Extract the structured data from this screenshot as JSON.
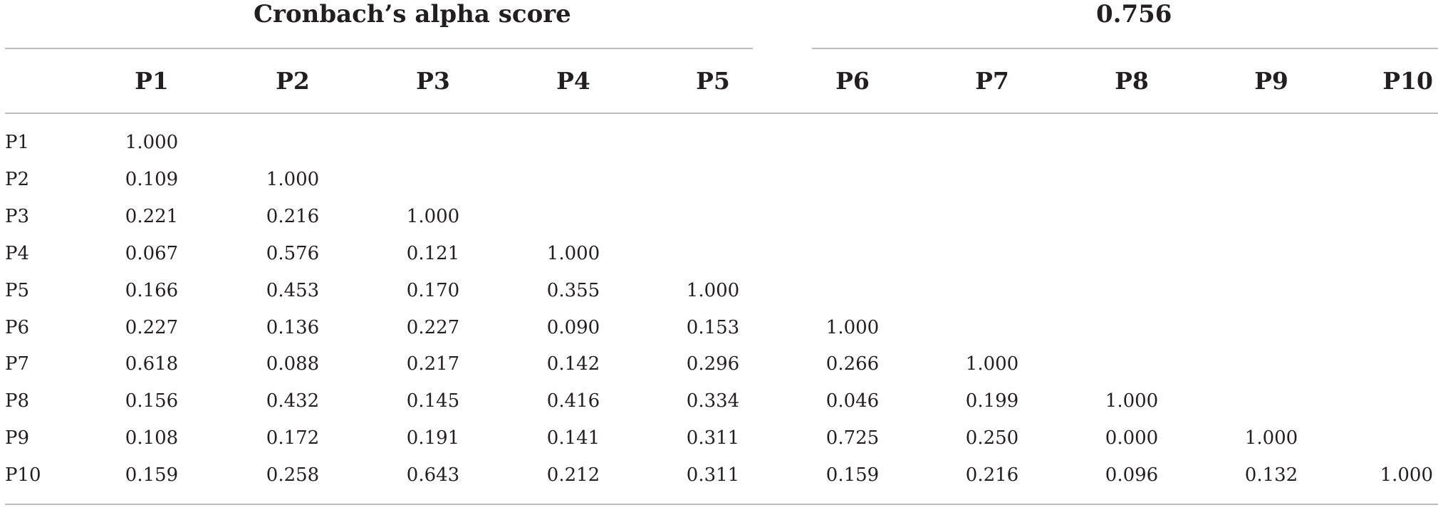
{
  "title": "Cronbach’s alpha score",
  "alpha_value": "0.756",
  "columns": [
    "P1",
    "P2",
    "P3",
    "P4",
    "P5",
    "P6",
    "P7",
    "P8",
    "P9",
    "P10"
  ],
  "rows": [
    {
      "label": "P1",
      "values": [
        "1.000",
        "",
        "",
        "",
        "",
        "",
        "",
        "",
        "",
        ""
      ]
    },
    {
      "label": "P2",
      "values": [
        "0.109",
        "1.000",
        "",
        "",
        "",
        "",
        "",
        "",
        "",
        ""
      ]
    },
    {
      "label": "P3",
      "values": [
        "0.221",
        "0.216",
        "1.000",
        "",
        "",
        "",
        "",
        "",
        "",
        ""
      ]
    },
    {
      "label": "P4",
      "values": [
        "0.067",
        "0.576",
        "0.121",
        "1.000",
        "",
        "",
        "",
        "",
        "",
        ""
      ]
    },
    {
      "label": "P5",
      "values": [
        "0.166",
        "0.453",
        "0.170",
        "0.355",
        "1.000",
        "",
        "",
        "",
        "",
        ""
      ]
    },
    {
      "label": "P6",
      "values": [
        "0.227",
        "0.136",
        "0.227",
        "0.090",
        "0.153",
        "1.000",
        "",
        "",
        "",
        ""
      ]
    },
    {
      "label": "P7",
      "values": [
        "0.618",
        "0.088",
        "0.217",
        "0.142",
        "0.296",
        "0.266",
        "1.000",
        "",
        "",
        ""
      ]
    },
    {
      "label": "P8",
      "values": [
        "0.156",
        "0.432",
        "0.145",
        "0.416",
        "0.334",
        "0.046",
        "0.199",
        "1.000",
        "",
        ""
      ]
    },
    {
      "label": "P9",
      "values": [
        "0.108",
        "0.172",
        "0.191",
        "0.141",
        "0.311",
        "0.725",
        "0.250",
        "0.000",
        "1.000",
        ""
      ]
    },
    {
      "label": "P10",
      "values": [
        "0.159",
        "0.258",
        "0.643",
        "0.212",
        "0.311",
        "0.159",
        "0.216",
        "0.096",
        "0.132",
        "1.000"
      ]
    }
  ]
}
